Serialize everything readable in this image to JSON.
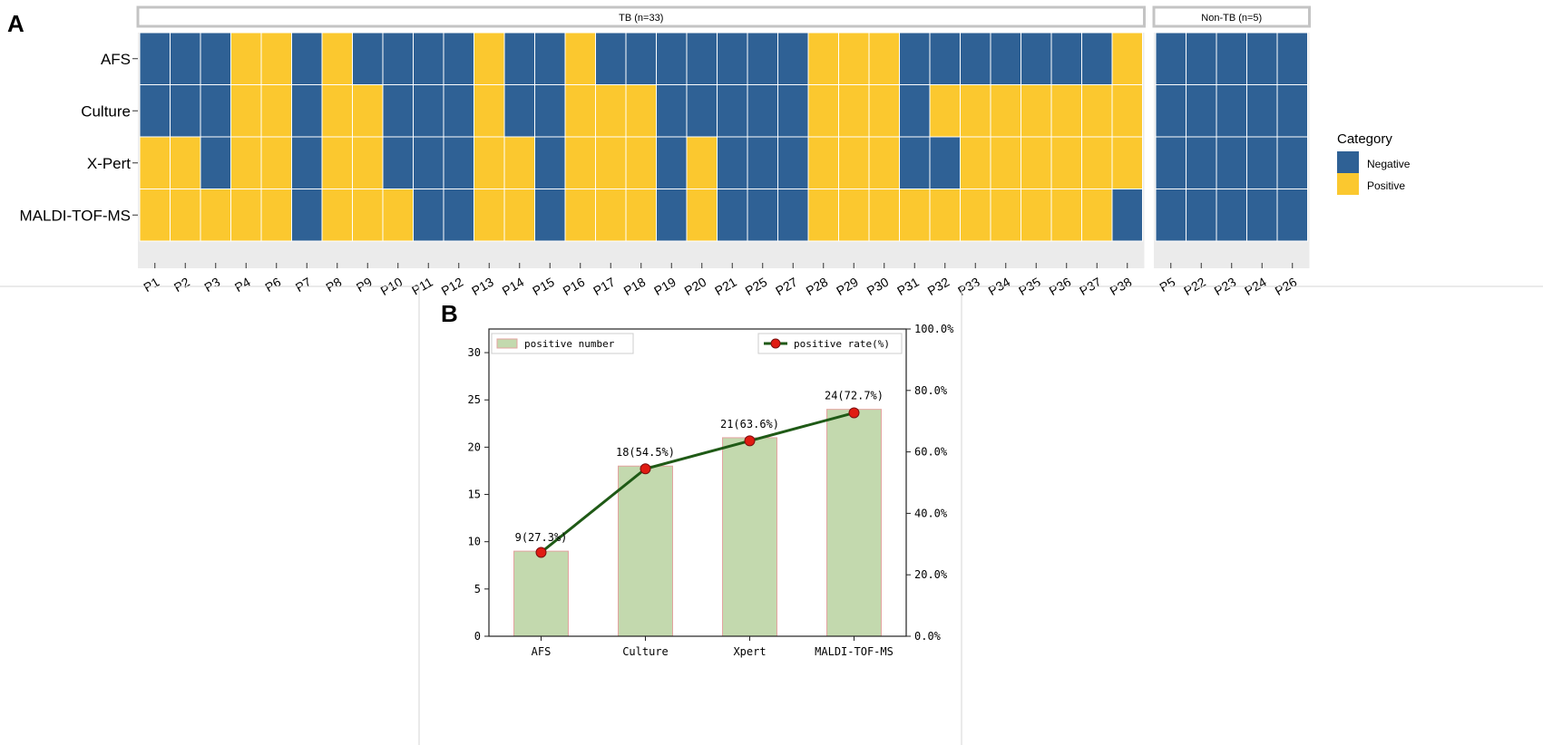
{
  "colors": {
    "negative": "#2f6195",
    "positive": "#fbc82f",
    "bar_fill": "#c3d9ae",
    "bar_edge": "#e3a3a0",
    "line": "#1f5a16",
    "marker": "#e01b12",
    "strip_border": "#c4c4c4",
    "panel_bg": "#ebebeb"
  },
  "panel_a": {
    "label": "A",
    "legend": {
      "title": "Category",
      "items": [
        {
          "key": "negative",
          "label": "Negative"
        },
        {
          "key": "positive",
          "label": "Positive"
        }
      ]
    },
    "rows": [
      "AFS",
      "Culture",
      "X-Pert",
      "MALDI-TOF-MS"
    ]
  },
  "panel_b": {
    "label": "B",
    "legend_left": "positive number",
    "legend_right": "positive rate(%)"
  },
  "chart_data": [
    {
      "type": "heatmap",
      "title": "",
      "row_labels": [
        "AFS",
        "Culture",
        "X-Pert",
        "MALDI-TOF-MS"
      ],
      "categories": [
        "Negative",
        "Positive"
      ],
      "facets": [
        {
          "name": "TB (n=33)",
          "columns": [
            "P1",
            "P2",
            "P3",
            "P4",
            "P6",
            "P7",
            "P8",
            "P9",
            "P10",
            "P11",
            "P12",
            "P13",
            "P14",
            "P15",
            "P16",
            "P17",
            "P18",
            "P19",
            "P20",
            "P21",
            "P25",
            "P27",
            "P28",
            "P29",
            "P30",
            "P31",
            "P32",
            "P33",
            "P34",
            "P35",
            "P36",
            "P37",
            "P38"
          ],
          "values": [
            "NNNPPNPNNNNPNNPNNNNNNNPPPNNNNNNNP",
            "NNNPPNPPNNNPNNPPPNNNNNPPPNPPPPPPP",
            "PPNPPNPPNNNPPNPPPNPNNNPPPNNPPPPPP",
            "PPPPPNPPPNNPPNPPPNPNNNPPPPPPPPPPN"
          ]
        },
        {
          "name": "Non-TB (n=5)",
          "columns": [
            "P5",
            "P22",
            "P23",
            "P24",
            "P26"
          ],
          "values": [
            "NNNNN",
            "NNNNN",
            "NNNNN",
            "NNNNN"
          ]
        }
      ]
    },
    {
      "type": "bar",
      "title": "",
      "categories": [
        "AFS",
        "Culture",
        "Xpert",
        "MALDI-TOF-MS"
      ],
      "series": [
        {
          "name": "positive number",
          "type": "bar",
          "axis": "left",
          "values": [
            9,
            18,
            21,
            24
          ]
        },
        {
          "name": "positive rate(%)",
          "type": "line",
          "axis": "right",
          "values": [
            27.3,
            54.5,
            63.6,
            72.7
          ]
        }
      ],
      "data_labels": [
        "9(27.3%)",
        "18(54.5%)",
        "21(63.6%)",
        "24(72.7%)"
      ],
      "ylim": [
        0,
        32.5
      ],
      "yticks": [
        0,
        5,
        10,
        15,
        20,
        25,
        30
      ],
      "y2lim": [
        0,
        100
      ],
      "y2ticks": [
        "0.0%",
        "20.0%",
        "40.0%",
        "60.0%",
        "80.0%",
        "100.0%"
      ],
      "xlabel": "",
      "ylabel": "",
      "grid": false,
      "legend_position": "top"
    }
  ]
}
